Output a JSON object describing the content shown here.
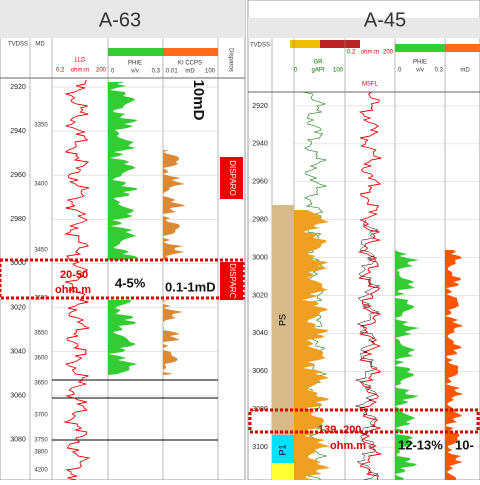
{
  "left": {
    "title": "A-63",
    "headers": {
      "tvdss": "TVDSS",
      "md": "MD",
      "lld": "LLD",
      "lld_unit": "ohm.m",
      "lld_min": "0.2",
      "lld_max": "200",
      "phie": "PHIE",
      "phie_unit": "v/v",
      "phie_min": "0",
      "phie_max": "0.3",
      "perm": "KI CCPS",
      "perm_min": "0.01",
      "perm_unit": "mD",
      "perm_max": "100",
      "shots": "Disparos"
    },
    "tvdss": [
      2920,
      2940,
      2960,
      2980,
      3000,
      3020,
      3040,
      3060,
      3080
    ],
    "md": [
      3350,
      3400,
      3450,
      3500,
      3550,
      3600,
      3650,
      3700,
      3750,
      3800,
      4200
    ],
    "annotations": {
      "perm_top": "10mD",
      "res": "20-50",
      "res_unit": "ohm.m",
      "phi": "4-5%",
      "perm": "0.1-1mD",
      "shot1": "DISPARO",
      "shot2": "DISPARO"
    }
  },
  "right": {
    "title": "A-45",
    "headers": {
      "tvdss": "TVDSS",
      "gr": "GR",
      "gr_unit": "gAPI",
      "gr_min": "0",
      "gr_max": "100",
      "msfl": "MSFL",
      "msfl_unit": "ohm.m",
      "msfl_min": "0.2",
      "msfl_max": "200",
      "phie": "PHIE",
      "phie_unit": "v/v",
      "phie_min": "0",
      "phie_max": "0.3",
      "perm_unit": "mD"
    },
    "tvdss": [
      2920,
      2940,
      2960,
      2980,
      3000,
      3020,
      3040,
      3060,
      3080,
      3100
    ],
    "annotations": {
      "zone1": "PS",
      "zone2": "P1",
      "res": "139 -200",
      "res_unit": "ohm.m",
      "phi": "12-13%",
      "perm": "10-"
    }
  }
}
